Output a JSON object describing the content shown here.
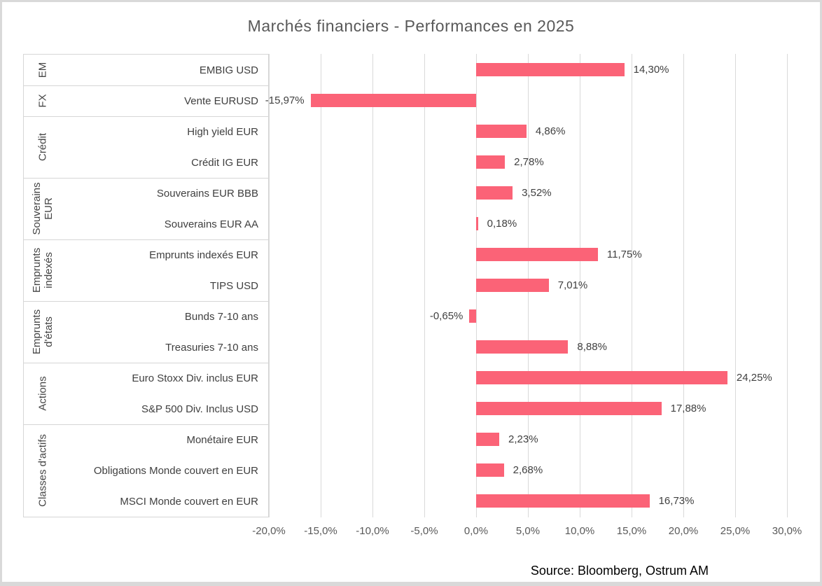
{
  "title": "Marchés financiers - Performances en 2025",
  "source": "Source: Bloomberg, Ostrum AM",
  "colors": {
    "bar": "#FB6377",
    "gridline": "#D9D9D9",
    "table_border": "#D6D6D6",
    "title_text": "#595959",
    "category_text": "#3F3F3F",
    "value_text": "#404040",
    "axis_text": "#595959"
  },
  "chart_data": {
    "type": "bar",
    "orientation": "horizontal",
    "title": "Marchés financiers - Performances en 2025",
    "value_format": "percent (French decimal comma)",
    "xlim": [
      -20,
      30
    ],
    "grid": true,
    "x_tick_values": [
      -20,
      -15,
      -10,
      -5,
      0,
      5,
      10,
      15,
      20,
      25,
      30
    ],
    "x_ticks": [
      "-20,0%",
      "-15,0%",
      "-10,0%",
      "-5,0%",
      "0,0%",
      "5,0%",
      "10,0%",
      "15,0%",
      "20,0%",
      "25,0%",
      "30,0%"
    ],
    "groups": [
      {
        "group": "EM",
        "items": [
          {
            "label": "EMBIG USD",
            "value": 14.3,
            "value_label": "14,30%"
          }
        ]
      },
      {
        "group": "FX",
        "items": [
          {
            "label": "Vente EURUSD",
            "value": -15.97,
            "value_label": "-15,97%"
          }
        ]
      },
      {
        "group": "Crédit",
        "items": [
          {
            "label": "High yield EUR",
            "value": 4.86,
            "value_label": "4,86%"
          },
          {
            "label": "Crédit IG EUR",
            "value": 2.78,
            "value_label": "2,78%"
          }
        ]
      },
      {
        "group": "Souverains EUR",
        "items": [
          {
            "label": "Souverains EUR BBB",
            "value": 3.52,
            "value_label": "3,52%"
          },
          {
            "label": "Souverains EUR AA",
            "value": 0.18,
            "value_label": "0,18%"
          }
        ]
      },
      {
        "group": "Emprunts indexés",
        "items": [
          {
            "label": "Emprunts indexés EUR",
            "value": 11.75,
            "value_label": "11,75%"
          },
          {
            "label": "TIPS USD",
            "value": 7.01,
            "value_label": "7,01%"
          }
        ]
      },
      {
        "group": "Emprunts d'états",
        "items": [
          {
            "label": "Bunds 7-10 ans",
            "value": -0.65,
            "value_label": "-0,65%"
          },
          {
            "label": "Treasuries 7-10 ans",
            "value": 8.88,
            "value_label": "8,88%"
          }
        ]
      },
      {
        "group": "Actions",
        "items": [
          {
            "label": "Euro Stoxx Div. inclus EUR",
            "value": 24.25,
            "value_label": "24,25%"
          },
          {
            "label": "S&P 500 Div. Inclus USD",
            "value": 17.88,
            "value_label": "17,88%"
          }
        ]
      },
      {
        "group": "Classes d'actifs",
        "items": [
          {
            "label": "Monétaire EUR",
            "value": 2.23,
            "value_label": "2,23%"
          },
          {
            "label": "Obligations Monde couvert en EUR",
            "value": 2.68,
            "value_label": "2,68%"
          },
          {
            "label": "MSCI Monde couvert en EUR",
            "value": 16.73,
            "value_label": "16,73%"
          }
        ]
      }
    ]
  }
}
